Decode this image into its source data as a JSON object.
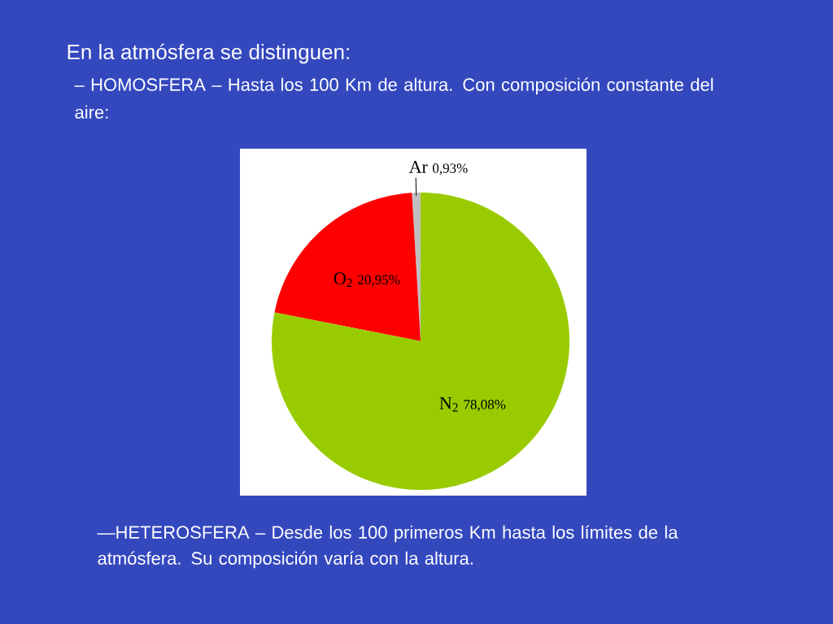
{
  "chart_data": {
    "type": "pie",
    "title": "En la atmósfera se distinguen:",
    "subtitle": "– HOMOSFERA – Hasta los 100 Km de altura. Con composición constante del aire:",
    "categories": [
      "Ar",
      "O$_{2}$",
      "N$_{2}$"
    ],
    "values": [
      0.93,
      20.95,
      78.08
    ],
    "colors": [
      "#c0c0c0",
      "#ff0000",
      "#99cc00"
    ],
    "value_labels": [
      "0,93%",
      "20,95%",
      "78,08%"
    ],
    "annotations": [
      "—HETEROSFERA – Desde los 100 primeros Km hasta los límites de la atmósfera. Su composición varía con la altura."
    ]
  }
}
